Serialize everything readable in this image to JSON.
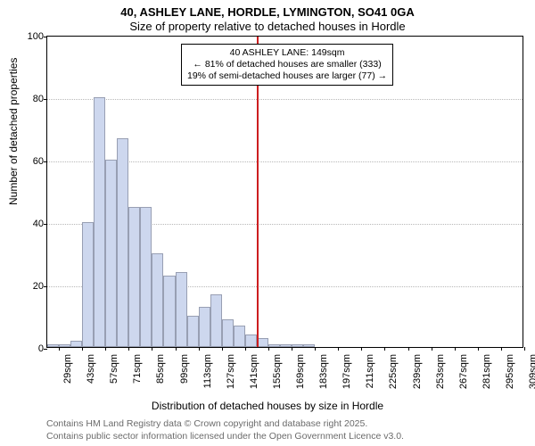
{
  "title": "40, ASHLEY LANE, HORDLE, LYMINGTON, SO41 0GA",
  "subtitle": "Size of property relative to detached houses in Hordle",
  "ylabel": "Number of detached properties",
  "xlabel": "Distribution of detached houses by size in Hordle",
  "credit1": "Contains HM Land Registry data © Crown copyright and database right 2025.",
  "credit2": "Contains public sector information licensed under the Open Government Licence v3.0.",
  "chart": {
    "type": "histogram",
    "background_color": "#ffffff",
    "border_color": "#000000",
    "grid_color": "#b8b8b8",
    "bar_fill_color": "#cdd7ee",
    "bar_border_color": "#989fb3",
    "highlight_color": "#cd1e20",
    "ylim": [
      0,
      100
    ],
    "yticks": [
      0,
      20,
      40,
      60,
      80,
      100
    ],
    "xtick_labels": [
      "29sqm",
      "43sqm",
      "57sqm",
      "71sqm",
      "85sqm",
      "99sqm",
      "113sqm",
      "127sqm",
      "141sqm",
      "155sqm",
      "169sqm",
      "183sqm",
      "197sqm",
      "211sqm",
      "225sqm",
      "239sqm",
      "253sqm",
      "267sqm",
      "281sqm",
      "295sqm",
      "309sqm"
    ],
    "values": [
      1,
      1,
      2,
      40,
      80,
      60,
      67,
      45,
      45,
      30,
      23,
      24,
      10,
      13,
      17,
      9,
      7,
      4,
      3,
      1,
      1,
      1,
      1,
      0,
      0,
      0,
      0,
      0,
      0,
      0,
      0,
      0,
      0,
      0,
      0,
      0,
      0,
      0,
      0,
      0,
      0
    ],
    "n_bars": 41,
    "highlight_index": 17.5,
    "annotation": {
      "line1": "40 ASHLEY LANE: 149sqm",
      "line2": "← 81% of detached houses are smaller (333)",
      "line3": "19% of semi-detached houses are larger (77) →"
    },
    "annot_fontsize": 10.5,
    "title_fontsize": 13,
    "label_fontsize": 12,
    "tick_fontsize": 11,
    "credit_fontsize": 10.5,
    "credit_color": "#6b6b6b"
  }
}
